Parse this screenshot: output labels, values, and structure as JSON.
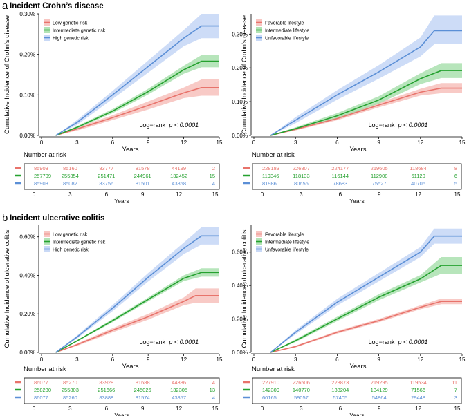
{
  "colors": {
    "red": "#e8736b",
    "green": "#25a12f",
    "blue": "#5b8fd6",
    "redBand": "#f6b8b3",
    "greenBand": "#9fdca4",
    "blueBand": "#bcd0f4"
  },
  "sections": [
    {
      "letter": "a",
      "title": "Incident Crohn’s disease"
    },
    {
      "letter": "b",
      "title": "Incident ulcerative colitis"
    }
  ],
  "common": {
    "xlabel": "Years",
    "xticks": [
      "0",
      "3",
      "6",
      "9",
      "12",
      "15"
    ],
    "risk_title": "Number at risk",
    "logrank_text": "Log−rank",
    "p_text": "p < 0.0001"
  },
  "chart_data": [
    {
      "type": "line",
      "panel": "a-left",
      "ylabel": "Cumulative Incidence of Crohn’s disease",
      "xlim": [
        0,
        15
      ],
      "ylim": [
        0,
        0.3
      ],
      "ylabels": [
        "0.00%",
        "0.10%",
        "0.20%",
        "0.30%"
      ],
      "series": [
        {
          "name": "Low genetic risk",
          "color": "red",
          "x": [
            1.2,
            3,
            6,
            9,
            12,
            13.5,
            15
          ],
          "y": [
            0,
            0.016,
            0.044,
            0.074,
            0.105,
            0.118,
            0.118
          ],
          "lo": [
            0,
            0.012,
            0.038,
            0.064,
            0.092,
            0.098,
            0.098
          ],
          "hi": [
            0,
            0.02,
            0.05,
            0.084,
            0.118,
            0.138,
            0.138
          ]
        },
        {
          "name": "Intermediate genetic risk",
          "color": "green",
          "x": [
            1.2,
            3,
            6,
            9,
            12,
            13.5,
            15
          ],
          "y": [
            0,
            0.02,
            0.06,
            0.108,
            0.162,
            0.183,
            0.183
          ],
          "lo": [
            0,
            0.017,
            0.055,
            0.101,
            0.152,
            0.168,
            0.168
          ],
          "hi": [
            0,
            0.023,
            0.065,
            0.115,
            0.172,
            0.198,
            0.198
          ]
        },
        {
          "name": "High genetic risk",
          "color": "blue",
          "x": [
            1.2,
            3,
            6,
            9,
            12,
            13.5,
            15
          ],
          "y": [
            0,
            0.032,
            0.1,
            0.17,
            0.24,
            0.27,
            0.27
          ],
          "lo": [
            0,
            0.026,
            0.09,
            0.155,
            0.22,
            0.24,
            0.24
          ],
          "hi": [
            0,
            0.038,
            0.11,
            0.185,
            0.26,
            0.3,
            0.3
          ]
        }
      ],
      "risk": [
        [
          "85903",
          "85160",
          "83777",
          "81578",
          "44199",
          "2"
        ],
        [
          "257709",
          "255354",
          "251471",
          "244961",
          "132452",
          "15"
        ],
        [
          "85903",
          "85082",
          "83756",
          "81501",
          "43858",
          "4"
        ]
      ]
    },
    {
      "type": "line",
      "panel": "a-right",
      "ylabel": "Cumulative Incidence of Crohn’s disease",
      "xlim": [
        0,
        15
      ],
      "ylim": [
        0,
        0.36
      ],
      "ylabels": [
        "0.00%",
        "0.10%",
        "0.20%",
        "0.30%"
      ],
      "series": [
        {
          "name": "Favorable lifestyle",
          "color": "red",
          "x": [
            1.2,
            3,
            6,
            9,
            12,
            13.5,
            15
          ],
          "y": [
            0,
            0.018,
            0.05,
            0.09,
            0.128,
            0.14,
            0.14
          ],
          "lo": [
            0,
            0.015,
            0.045,
            0.083,
            0.118,
            0.125,
            0.125
          ],
          "hi": [
            0,
            0.021,
            0.055,
            0.097,
            0.138,
            0.155,
            0.155
          ]
        },
        {
          "name": "Intermediate lifestyle",
          "color": "green",
          "x": [
            1.2,
            3,
            6,
            9,
            12,
            13.5,
            15
          ],
          "y": [
            0,
            0.02,
            0.058,
            0.105,
            0.168,
            0.192,
            0.192
          ],
          "lo": [
            0,
            0.016,
            0.05,
            0.094,
            0.152,
            0.17,
            0.17
          ],
          "hi": [
            0,
            0.024,
            0.066,
            0.116,
            0.184,
            0.214,
            0.214
          ]
        },
        {
          "name": "Unfavorable lifestyle",
          "color": "blue",
          "x": [
            1.2,
            3,
            6,
            9,
            12,
            13,
            15
          ],
          "y": [
            0,
            0.045,
            0.12,
            0.188,
            0.262,
            0.31,
            0.31
          ],
          "lo": [
            0,
            0.036,
            0.106,
            0.168,
            0.234,
            0.27,
            0.27
          ],
          "hi": [
            0,
            0.054,
            0.134,
            0.208,
            0.29,
            0.355,
            0.355
          ]
        }
      ],
      "risk": [
        [
          "228183",
          "226807",
          "224177",
          "219605",
          "118684",
          "8"
        ],
        [
          "119346",
          "118133",
          "116144",
          "112908",
          "61120",
          "6"
        ],
        [
          "81986",
          "80656",
          "78683",
          "75527",
          "40705",
          "5"
        ]
      ]
    },
    {
      "type": "line",
      "panel": "b-left",
      "ylabel": "Cumulative Incidence of ulcerative colitis",
      "xlim": [
        0,
        15
      ],
      "ylim": [
        0,
        0.66
      ],
      "ylabels": [
        "0.00%",
        "0.20%",
        "0.40%",
        "0.60%"
      ],
      "series": [
        {
          "name": "Low genetic risk",
          "color": "red",
          "x": [
            1.2,
            3,
            6,
            9,
            12,
            13,
            15
          ],
          "y": [
            0,
            0.04,
            0.115,
            0.185,
            0.265,
            0.295,
            0.295
          ],
          "lo": [
            0,
            0.034,
            0.104,
            0.17,
            0.245,
            0.258,
            0.258
          ],
          "hi": [
            0,
            0.046,
            0.126,
            0.2,
            0.285,
            0.332,
            0.332
          ]
        },
        {
          "name": "Intermediate genetic risk",
          "color": "green",
          "x": [
            1.2,
            3,
            6,
            9,
            12,
            13.5,
            15
          ],
          "y": [
            0,
            0.06,
            0.165,
            0.275,
            0.385,
            0.415,
            0.415
          ],
          "lo": [
            0,
            0.056,
            0.157,
            0.265,
            0.37,
            0.393,
            0.393
          ],
          "hi": [
            0,
            0.064,
            0.173,
            0.285,
            0.4,
            0.437,
            0.437
          ]
        },
        {
          "name": "High genetic risk",
          "color": "blue",
          "x": [
            1.2,
            3,
            6,
            9,
            12,
            13.5,
            15
          ],
          "y": [
            0,
            0.08,
            0.23,
            0.39,
            0.54,
            0.605,
            0.605
          ],
          "lo": [
            0,
            0.072,
            0.214,
            0.368,
            0.51,
            0.56,
            0.56
          ],
          "hi": [
            0,
            0.088,
            0.246,
            0.412,
            0.57,
            0.65,
            0.65
          ]
        }
      ],
      "risk": [
        [
          "86077",
          "85270",
          "83928",
          "81688",
          "44386",
          "4"
        ],
        [
          "258230",
          "255803",
          "251666",
          "245026",
          "132305",
          "13"
        ],
        [
          "86077",
          "85260",
          "83888",
          "81574",
          "43857",
          "4"
        ]
      ]
    },
    {
      "type": "line",
      "panel": "b-right",
      "ylabel": "Cumulative Incidence of ulcerative colitis",
      "xlim": [
        0,
        15
      ],
      "ylim": [
        0,
        0.76
      ],
      "ylabels": [
        "0.00%",
        "0.20%",
        "0.40%",
        "0.60%"
      ],
      "series": [
        {
          "name": "Favorable lifestyle",
          "color": "red",
          "x": [
            1.2,
            3,
            6,
            9,
            12,
            13.5,
            15
          ],
          "y": [
            0,
            0.035,
            0.12,
            0.19,
            0.27,
            0.305,
            0.305
          ],
          "lo": [
            0,
            0.03,
            0.112,
            0.18,
            0.258,
            0.288,
            0.288
          ],
          "hi": [
            0,
            0.04,
            0.128,
            0.2,
            0.282,
            0.322,
            0.322
          ]
        },
        {
          "name": "Intermediate lifestyle",
          "color": "green",
          "x": [
            1.2,
            3,
            6,
            9,
            12,
            13.5,
            15
          ],
          "y": [
            0,
            0.07,
            0.2,
            0.33,
            0.44,
            0.52,
            0.52
          ],
          "lo": [
            0,
            0.062,
            0.187,
            0.312,
            0.418,
            0.47,
            0.47
          ],
          "hi": [
            0,
            0.078,
            0.213,
            0.348,
            0.462,
            0.57,
            0.57
          ]
        },
        {
          "name": "Unfavorable lifestyle",
          "color": "blue",
          "x": [
            1.2,
            3,
            6,
            9,
            12,
            13,
            15
          ],
          "y": [
            0,
            0.12,
            0.3,
            0.45,
            0.6,
            0.695,
            0.695
          ],
          "lo": [
            0,
            0.108,
            0.28,
            0.425,
            0.57,
            0.65,
            0.65
          ],
          "hi": [
            0,
            0.132,
            0.32,
            0.475,
            0.63,
            0.74,
            0.74
          ]
        }
      ],
      "risk": [
        [
          "227910",
          "226506",
          "223873",
          "219295",
          "119534",
          "11"
        ],
        [
          "142309",
          "140770",
          "138204",
          "134129",
          "71566",
          "7"
        ],
        [
          "60165",
          "59057",
          "57405",
          "54864",
          "29448",
          "3"
        ]
      ]
    }
  ]
}
